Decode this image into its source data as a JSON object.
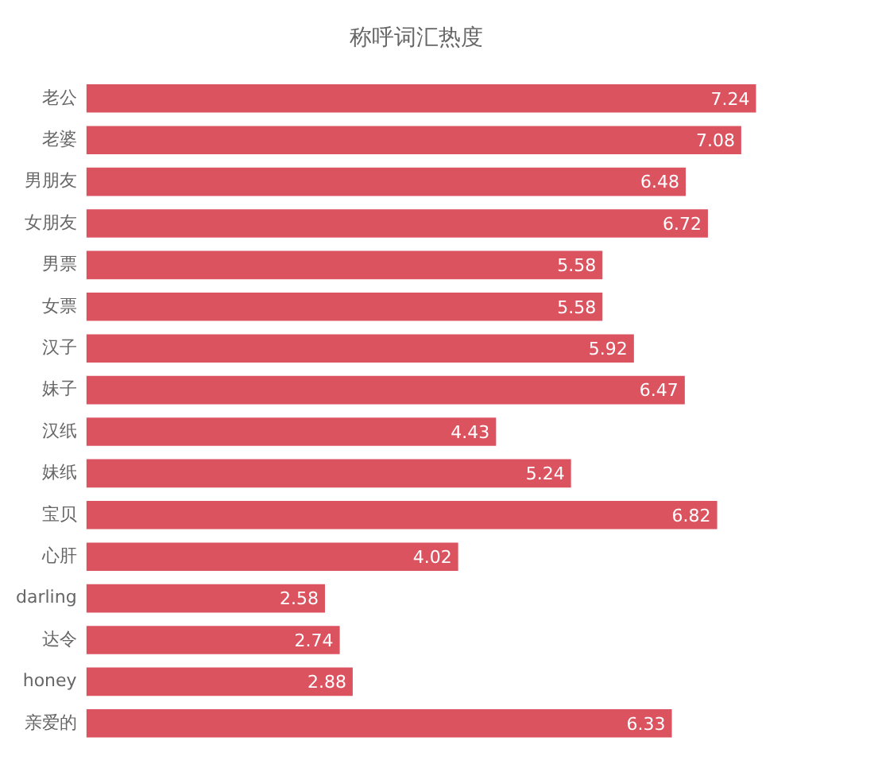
{
  "chart_data": {
    "type": "bar",
    "orientation": "horizontal",
    "title": "称呼词汇热度",
    "categories": [
      "老公",
      "老婆",
      "男朋友",
      "女朋友",
      "男票",
      "女票",
      "汉子",
      "妹子",
      "汉纸",
      "妹纸",
      "宝贝",
      "心肝",
      "darling",
      "达令",
      "honey",
      "亲爱的"
    ],
    "values": [
      7.24,
      7.08,
      6.48,
      6.72,
      5.58,
      5.58,
      5.92,
      6.47,
      4.43,
      5.24,
      6.82,
      4.02,
      2.58,
      2.74,
      2.88,
      6.33
    ],
    "color": "#dc5360",
    "data_labels": true,
    "grid": false,
    "legend": false
  }
}
